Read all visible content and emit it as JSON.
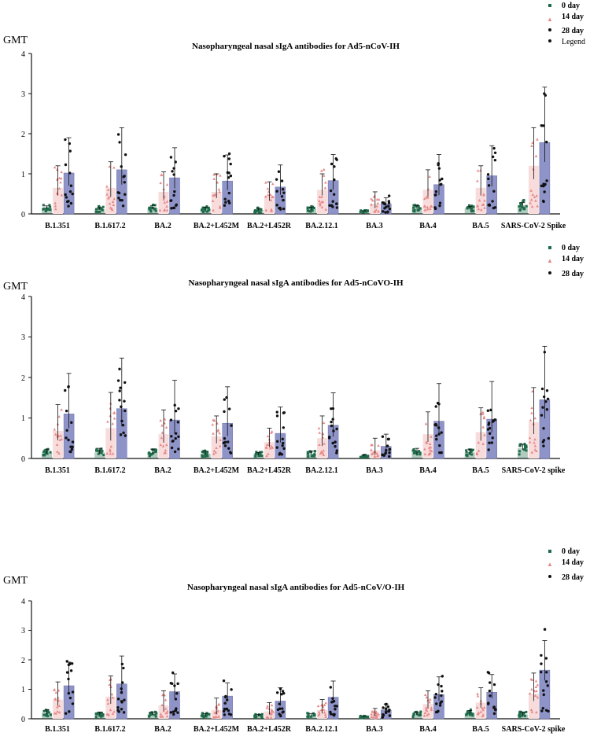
{
  "colors": {
    "day0": "#1f6b4a",
    "day14_bar": "#f8dcdc",
    "day14_marker": "#e88a8a",
    "day28_bar": "#8e93c8",
    "day28_marker": "#111111",
    "axis": "#111111"
  },
  "legend_shared": [
    "0 day",
    "14 day",
    "28 day"
  ],
  "panel1_extra_legend": "Legend",
  "chart_data": [
    {
      "type": "bar",
      "title": "Nasopharyngeal nasal sIgA antibodies for Ad5-nCoV-IH",
      "ylabel": "GMT",
      "ylim": [
        0,
        4
      ],
      "yticks": [
        "0",
        "1",
        "2",
        "3",
        "4"
      ],
      "categories": [
        "B.1.351",
        "B.1.617.2",
        "BA.2",
        "BA.2+L452M",
        "BA.2+L452R",
        "BA.2.12.1",
        "BA.3",
        "BA.4",
        "BA.5",
        "SARS-CoV-2 Spike"
      ],
      "series": [
        {
          "name": "0 day",
          "values": [
            0.15,
            0.12,
            0.15,
            0.12,
            0.1,
            0.12,
            0.06,
            0.15,
            0.14,
            0.22
          ],
          "err": [
            0.05,
            0.04,
            0.06,
            0.05,
            0.04,
            0.05,
            0.02,
            0.06,
            0.05,
            0.06
          ]
        },
        {
          "name": "14 day",
          "values": [
            0.65,
            0.65,
            0.55,
            0.55,
            0.45,
            0.6,
            0.25,
            0.6,
            0.65,
            1.2
          ],
          "err": [
            0.55,
            0.65,
            0.5,
            0.45,
            0.35,
            0.4,
            0.3,
            0.5,
            0.55,
            0.95
          ]
        },
        {
          "name": "28 day",
          "values": [
            1.02,
            1.1,
            0.9,
            0.82,
            0.67,
            0.83,
            0.25,
            0.73,
            0.95,
            1.78
          ],
          "err": [
            0.88,
            1.05,
            0.75,
            0.65,
            0.55,
            0.65,
            0.15,
            0.75,
            0.75,
            1.38
          ]
        }
      ]
    },
    {
      "type": "bar",
      "title": "Nasopharyngeal nasal sIgA antibodies for Ad5-nCoVO-IH",
      "ylabel": "GMT",
      "ylim": [
        0,
        4
      ],
      "yticks": [
        "0",
        "1",
        "2",
        "3",
        "4"
      ],
      "categories": [
        "B.1.351",
        "B.1.617.2",
        "BA.2",
        "BA.2+L452M",
        "BA.2+L452R",
        "BA.2.12.1",
        "BA.3",
        "BA.4",
        "BA.5",
        "SARS-CoV-2 spike"
      ],
      "series": [
        {
          "name": "0 day",
          "values": [
            0.15,
            0.15,
            0.15,
            0.12,
            0.1,
            0.12,
            0.06,
            0.15,
            0.15,
            0.25
          ],
          "err": [
            0.08,
            0.1,
            0.08,
            0.06,
            0.05,
            0.06,
            0.03,
            0.1,
            0.08,
            0.1
          ]
        },
        {
          "name": "14 day",
          "values": [
            0.68,
            0.75,
            0.6,
            0.55,
            0.4,
            0.5,
            0.2,
            0.6,
            0.65,
            0.9
          ],
          "err": [
            0.65,
            0.88,
            0.6,
            0.5,
            0.35,
            0.55,
            0.3,
            0.55,
            0.6,
            0.85
          ]
        },
        {
          "name": "28 day",
          "values": [
            1.1,
            1.23,
            0.95,
            0.87,
            0.62,
            0.82,
            0.3,
            0.92,
            0.97,
            1.45
          ],
          "err": [
            1.0,
            1.25,
            0.98,
            0.9,
            0.65,
            0.8,
            0.3,
            0.93,
            0.93,
            1.32
          ]
        }
      ]
    },
    {
      "type": "bar",
      "title": "Nasopharyngeal nasal sIgA antibodies for Ad5-nCoV/O-IH",
      "ylabel": "GMT",
      "ylim": [
        0,
        4
      ],
      "yticks": [
        "0",
        "1",
        "2",
        "3",
        "4"
      ],
      "categories": [
        "B.1.351",
        "B.1.617.2",
        "BA.2",
        "BA.2+L452M",
        "BA.2+L452R",
        "BA.2.12.1",
        "BA.3",
        "BA.4",
        "BA.5",
        "SARS-CoV-2 spike"
      ],
      "series": [
        {
          "name": "0 day",
          "values": [
            0.2,
            0.15,
            0.15,
            0.12,
            0.1,
            0.12,
            0.06,
            0.15,
            0.2,
            0.15
          ],
          "err": [
            0.1,
            0.08,
            0.08,
            0.06,
            0.05,
            0.06,
            0.03,
            0.08,
            0.08,
            0.08
          ]
        },
        {
          "name": "14 day",
          "values": [
            0.65,
            0.75,
            0.45,
            0.3,
            0.25,
            0.3,
            0.15,
            0.5,
            0.55,
            0.85
          ],
          "err": [
            0.6,
            0.7,
            0.5,
            0.4,
            0.3,
            0.35,
            0.2,
            0.45,
            0.5,
            0.7
          ]
        },
        {
          "name": "28 day",
          "values": [
            1.12,
            1.18,
            0.92,
            0.77,
            0.6,
            0.73,
            0.3,
            0.82,
            0.9,
            1.65
          ],
          "err": [
            0.8,
            0.95,
            0.6,
            0.45,
            0.45,
            0.55,
            0.2,
            0.6,
            0.6,
            1.0
          ]
        }
      ]
    }
  ]
}
